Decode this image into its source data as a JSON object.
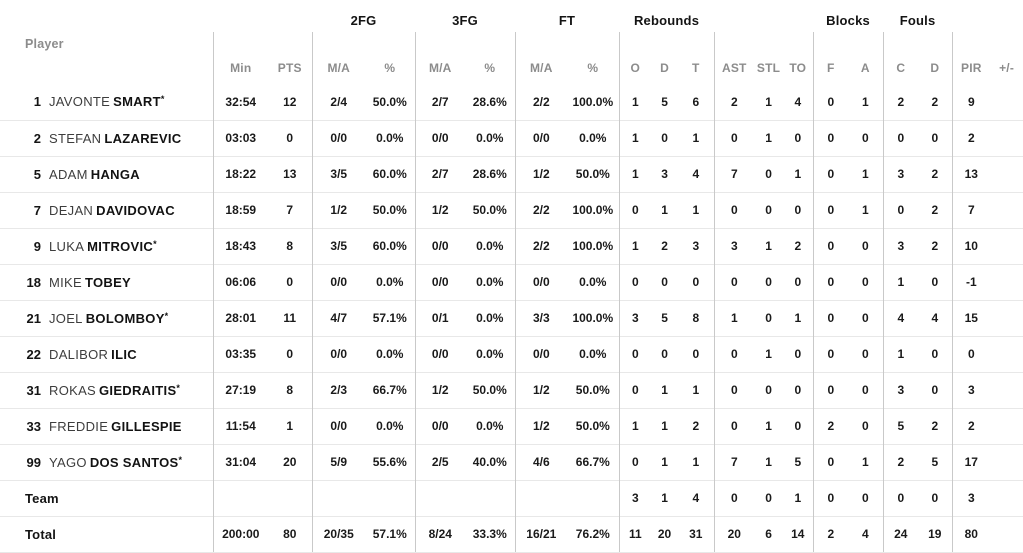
{
  "colors": {
    "group_header_text": "#141414",
    "column_header_text": "#8c8c8c",
    "stat_text": "#1a1a1a",
    "first_name_text": "#3d3d3d",
    "vertical_separator": "#c9c9c9",
    "row_divider": "#e8e8e8",
    "background": "#ffffff"
  },
  "table": {
    "group_headers": [
      {
        "label": "",
        "span": 3
      },
      {
        "label": "2FG",
        "span": 2
      },
      {
        "label": "3FG",
        "span": 2
      },
      {
        "label": "FT",
        "span": 2
      },
      {
        "label": "Rebounds",
        "span": 3
      },
      {
        "label": "",
        "span": 3
      },
      {
        "label": "Blocks",
        "span": 2
      },
      {
        "label": "Fouls",
        "span": 2
      },
      {
        "label": "",
        "span": 2
      }
    ],
    "columns": [
      {
        "key": "player",
        "label": "Player"
      },
      {
        "key": "min",
        "label": "Min"
      },
      {
        "key": "pts",
        "label": "PTS"
      },
      {
        "key": "fg2-ma",
        "label": "M/A"
      },
      {
        "key": "fg2-pct",
        "label": "%"
      },
      {
        "key": "fg3-ma",
        "label": "M/A"
      },
      {
        "key": "fg3-pct",
        "label": "%"
      },
      {
        "key": "ft-ma",
        "label": "M/A"
      },
      {
        "key": "ft-pct",
        "label": "%"
      },
      {
        "key": "reb-o",
        "label": "O"
      },
      {
        "key": "reb-d",
        "label": "D"
      },
      {
        "key": "reb-t",
        "label": "T"
      },
      {
        "key": "ast",
        "label": "AST"
      },
      {
        "key": "stl",
        "label": "STL"
      },
      {
        "key": "to",
        "label": "TO"
      },
      {
        "key": "blk-f",
        "label": "F"
      },
      {
        "key": "blk-a",
        "label": "A"
      },
      {
        "key": "foul-c",
        "label": "C"
      },
      {
        "key": "foul-d",
        "label": "D"
      },
      {
        "key": "pir",
        "label": "PIR"
      },
      {
        "key": "plusminus",
        "label": "+/-"
      }
    ],
    "rows": [
      {
        "num": "1",
        "first": "JAVONTE",
        "last": "SMART",
        "starter": true,
        "stats": [
          "32:54",
          "12",
          "2/4",
          "50.0%",
          "2/7",
          "28.6%",
          "2/2",
          "100.0%",
          "1",
          "5",
          "6",
          "2",
          "1",
          "4",
          "0",
          "1",
          "2",
          "2",
          "9",
          ""
        ]
      },
      {
        "num": "2",
        "first": "STEFAN",
        "last": "LAZAREVIC",
        "starter": false,
        "stats": [
          "03:03",
          "0",
          "0/0",
          "0.0%",
          "0/0",
          "0.0%",
          "0/0",
          "0.0%",
          "1",
          "0",
          "1",
          "0",
          "1",
          "0",
          "0",
          "0",
          "0",
          "0",
          "2",
          ""
        ]
      },
      {
        "num": "5",
        "first": "ADAM",
        "last": "HANGA",
        "starter": false,
        "stats": [
          "18:22",
          "13",
          "3/5",
          "60.0%",
          "2/7",
          "28.6%",
          "1/2",
          "50.0%",
          "1",
          "3",
          "4",
          "7",
          "0",
          "1",
          "0",
          "1",
          "3",
          "2",
          "13",
          ""
        ]
      },
      {
        "num": "7",
        "first": "DEJAN",
        "last": "DAVIDOVAC",
        "starter": false,
        "stats": [
          "18:59",
          "7",
          "1/2",
          "50.0%",
          "1/2",
          "50.0%",
          "2/2",
          "100.0%",
          "0",
          "1",
          "1",
          "0",
          "0",
          "0",
          "0",
          "1",
          "0",
          "2",
          "7",
          ""
        ]
      },
      {
        "num": "9",
        "first": "LUKA",
        "last": "MITROVIC",
        "starter": true,
        "stats": [
          "18:43",
          "8",
          "3/5",
          "60.0%",
          "0/0",
          "0.0%",
          "2/2",
          "100.0%",
          "1",
          "2",
          "3",
          "3",
          "1",
          "2",
          "0",
          "0",
          "3",
          "2",
          "10",
          ""
        ]
      },
      {
        "num": "18",
        "first": "MIKE",
        "last": "TOBEY",
        "starter": false,
        "stats": [
          "06:06",
          "0",
          "0/0",
          "0.0%",
          "0/0",
          "0.0%",
          "0/0",
          "0.0%",
          "0",
          "0",
          "0",
          "0",
          "0",
          "0",
          "0",
          "0",
          "1",
          "0",
          "-1",
          ""
        ]
      },
      {
        "num": "21",
        "first": "JOEL",
        "last": "BOLOMBOY",
        "starter": true,
        "stats": [
          "28:01",
          "11",
          "4/7",
          "57.1%",
          "0/1",
          "0.0%",
          "3/3",
          "100.0%",
          "3",
          "5",
          "8",
          "1",
          "0",
          "1",
          "0",
          "0",
          "4",
          "4",
          "15",
          ""
        ]
      },
      {
        "num": "22",
        "first": "DALIBOR",
        "last": "ILIC",
        "starter": false,
        "stats": [
          "03:35",
          "0",
          "0/0",
          "0.0%",
          "0/0",
          "0.0%",
          "0/0",
          "0.0%",
          "0",
          "0",
          "0",
          "0",
          "1",
          "0",
          "0",
          "0",
          "1",
          "0",
          "0",
          ""
        ]
      },
      {
        "num": "31",
        "first": "ROKAS",
        "last": "GIEDRAITIS",
        "starter": true,
        "stats": [
          "27:19",
          "8",
          "2/3",
          "66.7%",
          "1/2",
          "50.0%",
          "1/2",
          "50.0%",
          "0",
          "1",
          "1",
          "0",
          "0",
          "0",
          "0",
          "0",
          "3",
          "0",
          "3",
          ""
        ]
      },
      {
        "num": "33",
        "first": "FREDDIE",
        "last": "GILLESPIE",
        "starter": false,
        "stats": [
          "11:54",
          "1",
          "0/0",
          "0.0%",
          "0/0",
          "0.0%",
          "1/2",
          "50.0%",
          "1",
          "1",
          "2",
          "0",
          "1",
          "0",
          "2",
          "0",
          "5",
          "2",
          "2",
          ""
        ]
      },
      {
        "num": "99",
        "first": "YAGO",
        "last": "DOS SANTOS",
        "starter": true,
        "stats": [
          "31:04",
          "20",
          "5/9",
          "55.6%",
          "2/5",
          "40.0%",
          "4/6",
          "66.7%",
          "0",
          "1",
          "1",
          "7",
          "1",
          "5",
          "0",
          "1",
          "2",
          "5",
          "17",
          ""
        ]
      }
    ],
    "team_row": {
      "label": "Team",
      "stats": [
        "",
        "",
        "",
        "",
        "",
        "",
        "",
        "",
        "3",
        "1",
        "4",
        "0",
        "0",
        "1",
        "0",
        "0",
        "0",
        "0",
        "3",
        ""
      ]
    },
    "total_row": {
      "label": "Total",
      "stats": [
        "200:00",
        "80",
        "20/35",
        "57.1%",
        "8/24",
        "33.3%",
        "16/21",
        "76.2%",
        "11",
        "20",
        "31",
        "20",
        "6",
        "14",
        "2",
        "4",
        "24",
        "19",
        "80",
        ""
      ]
    },
    "starter_marker": "*"
  }
}
